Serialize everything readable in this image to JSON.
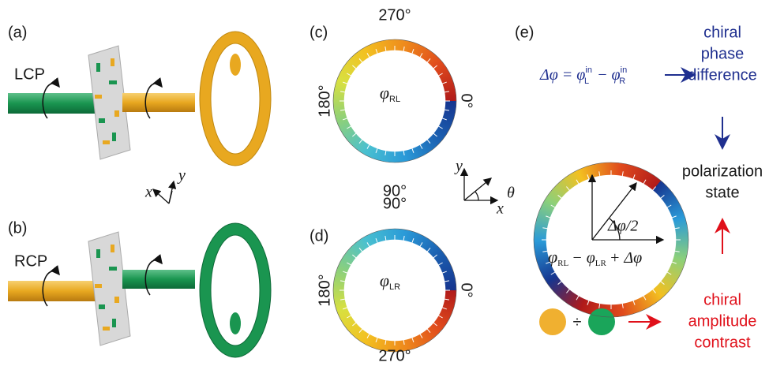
{
  "panel_a": {
    "label": "(a)",
    "beam": "LCP"
  },
  "panel_b": {
    "label": "(b)",
    "beam": "RCP"
  },
  "axes_ab": {
    "x": "x",
    "y": "y"
  },
  "panel_c": {
    "label": "(c)",
    "top": "270°",
    "left": "180°",
    "right": "0°",
    "bottom": "90°",
    "symbol": "φ",
    "subscript": "RL"
  },
  "panel_d": {
    "label": "(d)",
    "top": "90°",
    "left": "180°",
    "right": "0°",
    "bottom": "270°",
    "symbol": "φ",
    "subscript": "LR"
  },
  "axes_cd": {
    "x": "x",
    "y": "y",
    "angle": "θ"
  },
  "panel_e": {
    "label": "(e)",
    "equation": {
      "lhs": "Δφ = φ",
      "sup_l": "in",
      "sub_l": "L",
      "minus": "−  φ",
      "sup_r": "in",
      "sub_r": "R"
    },
    "phase_lines": [
      "chiral",
      "phase",
      "difference"
    ],
    "state_lines": [
      "polarization",
      "state"
    ],
    "amplitude_lines": [
      "chiral",
      "amplitude",
      "contrast"
    ],
    "divide": "÷",
    "ring_angle": "Δφ/2",
    "ring_expr": {
      "p1": "φ",
      "s1": "RL",
      "p2": "− φ",
      "s2": "LR",
      "p3": "+ Δφ"
    }
  }
}
